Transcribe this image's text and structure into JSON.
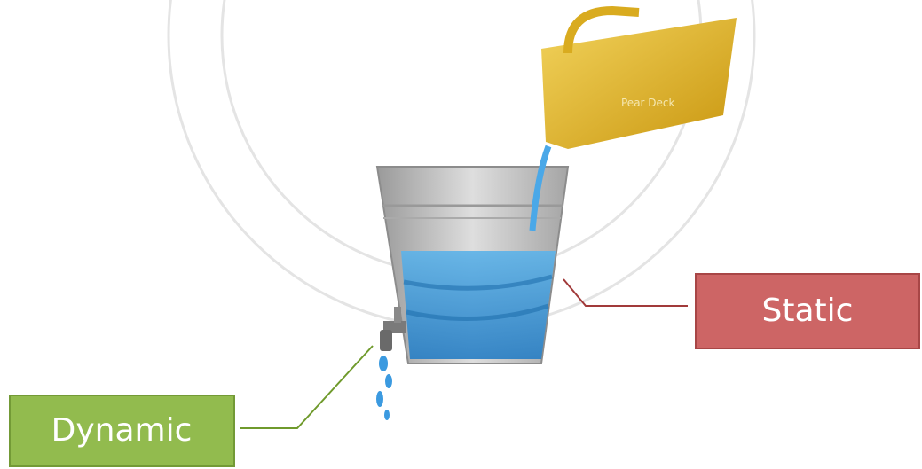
{
  "labels": {
    "static": "Static",
    "dynamic": "Dynamic"
  },
  "watermark": "Pear Deck"
}
